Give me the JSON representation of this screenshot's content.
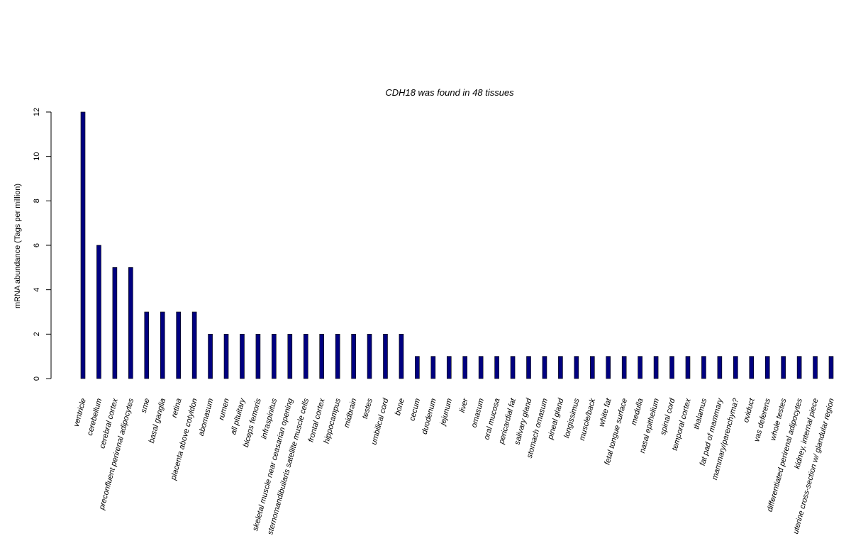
{
  "chart_data": {
    "type": "bar",
    "title": "CDH18  was found in  48  tissues",
    "xlabel": "",
    "ylabel": "mRNA abundance (Tags per million)",
    "ylim": [
      0,
      12
    ],
    "yticks": [
      0,
      2,
      4,
      6,
      8,
      10,
      12
    ],
    "bar_color": "#000080",
    "bar_border_color": "#000000",
    "grid": false,
    "categories": [
      "ventricle",
      "cerebellum",
      "cerebral cortex",
      "preconfluent perirenal adipocytes",
      "sme",
      "basal ganglia",
      "retina",
      "placenta above cotyldon",
      "abomasum",
      "rumen",
      "all pituitary",
      "biceps femoris",
      "infraspinitus",
      "skeletal muscle near ceasarian opening",
      "sternomandibuilaris satellite muscle cells",
      "frontal cortex",
      "hippocampus",
      "midbrain",
      "testes",
      "umbilical cord",
      "bone",
      "cecum",
      "duodenum",
      "jejunum",
      "liver",
      "omasum",
      "oral mucosa",
      "pericardial fat",
      "salivary gland",
      "stomach omasum",
      "pineal gland",
      "longissimus",
      "muscle/back",
      "white fat",
      "fetal tongue surface",
      "medulla",
      "nasal epithelium",
      "spinal cord",
      "temporal cortex",
      "thalamus",
      "fat pad of mammary",
      "mammary/parenchyma?",
      "oviduct",
      "vas deferens",
      "whole testes",
      "differentiated perirenal adipocytes",
      "kidney, internal piece",
      "uterine cross-section w/ glandular region"
    ],
    "values": [
      12,
      6,
      5,
      5,
      3,
      3,
      3,
      3,
      2,
      2,
      2,
      2,
      2,
      2,
      2,
      2,
      2,
      2,
      2,
      2,
      2,
      1,
      1,
      1,
      1,
      1,
      1,
      1,
      1,
      1,
      1,
      1,
      1,
      1,
      1,
      1,
      1,
      1,
      1,
      1,
      1,
      1,
      1,
      1,
      1,
      1,
      1,
      1
    ]
  }
}
